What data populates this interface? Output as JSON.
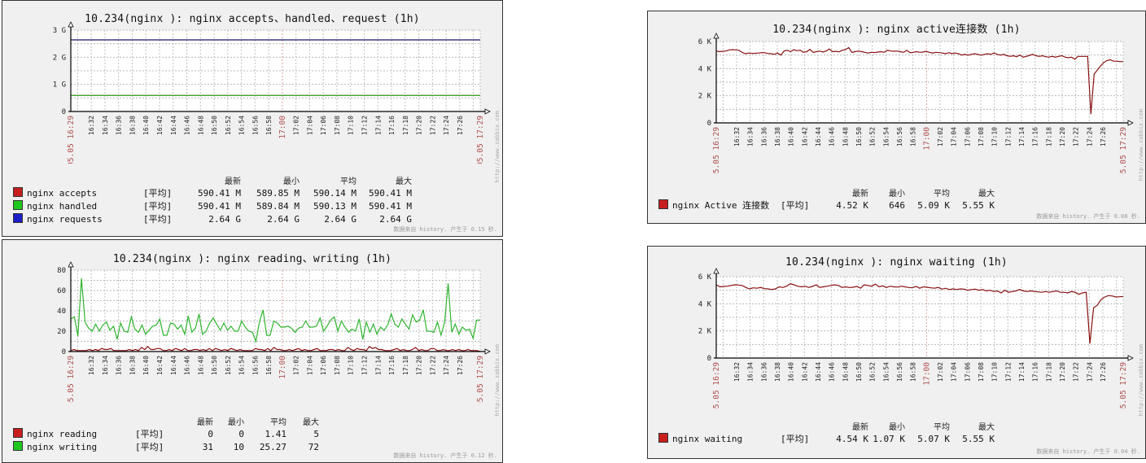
{
  "common": {
    "legend_headers": [
      "最新",
      "最小",
      "平均",
      "最大"
    ],
    "func_label": "[平均]",
    "x_ticks": [
      "16:32",
      "16:34",
      "16:36",
      "16:38",
      "16:40",
      "16:42",
      "16:44",
      "16:46",
      "16:48",
      "16:50",
      "16:52",
      "16:54",
      "16:56",
      "16:58",
      "17:00",
      "17:02",
      "17:04",
      "17:06",
      "17:08",
      "17:10",
      "17:12",
      "17:14",
      "17:16",
      "17:18",
      "17:20",
      "17:22",
      "17:24",
      "17:26"
    ],
    "x_start_label": "05.05 16:29",
    "x_end_label": "05.05 17:29",
    "watermark": "http://www.zabbix.com"
  },
  "panels": [
    {
      "id": "accepts",
      "title": "10.234(nginx ): nginx accepts、handled、request (1h)",
      "footer": "数据来自 history. 产生于 0.15 秒.",
      "series": [
        {
          "name": "nginx accepts",
          "color": "#c81e1e",
          "last": "590.41 M",
          "min": "589.85 M",
          "avg": "590.14 M",
          "max": "590.41 M"
        },
        {
          "name": "nginx handled",
          "color": "#1ec81e",
          "last": "590.41 M",
          "min": "589.84 M",
          "avg": "590.13 M",
          "max": "590.41 M"
        },
        {
          "name": "nginx requests",
          "color": "#1e1ec8",
          "last": "2.64 G",
          "min": "2.64 G",
          "avg": "2.64 G",
          "max": "2.64 G"
        }
      ]
    },
    {
      "id": "reading",
      "title": "10.234(nginx ): nginx reading、writing (1h)",
      "footer": "数据来自 history. 产生于 0.12 秒.",
      "series": [
        {
          "name": "nginx reading",
          "color": "#c81e1e",
          "last": "0",
          "min": "0",
          "avg": "1.41",
          "max": "5"
        },
        {
          "name": "nginx writing",
          "color": "#1ec81e",
          "last": "31",
          "min": "10",
          "avg": "25.27",
          "max": "72"
        }
      ]
    },
    {
      "id": "active",
      "title": "10.234(nginx ): nginx active连接数 (1h)",
      "footer": "数据来自 history. 产生于 0.08 秒.",
      "series": [
        {
          "name": "nginx Active 连接数",
          "color": "#c81e1e",
          "last": "4.52 K",
          "min": "646",
          "avg": "5.09 K",
          "max": "5.55 K"
        }
      ]
    },
    {
      "id": "waiting",
      "title": "10.234(nginx ): nginx waiting (1h)",
      "footer": "数据来自 history. 产生于 0.04 秒.",
      "series": [
        {
          "name": "nginx waiting",
          "color": "#c81e1e",
          "last": "4.54 K",
          "min": "1.07 K",
          "avg": "5.07 K",
          "max": "5.55 K"
        }
      ]
    }
  ],
  "chart_data": [
    {
      "type": "line",
      "title": "10.234(nginx ): nginx accepts、handled、request (1h)",
      "xlabel": "",
      "ylabel": "",
      "y_ticks": [
        "0",
        "1 G",
        "2 G",
        "3 G"
      ],
      "ylim": [
        0,
        3000000000
      ],
      "x_range": [
        "05.05 16:29",
        "05.05 17:29"
      ],
      "grid": true,
      "series": [
        {
          "name": "nginx accepts",
          "color": "#c81e1e",
          "values_constant": 590140000
        },
        {
          "name": "nginx handled",
          "color": "#1ec81e",
          "values_constant": 590130000
        },
        {
          "name": "nginx requests",
          "color": "#1e1ec8",
          "values_constant": 2640000000
        }
      ]
    },
    {
      "type": "line",
      "title": "10.234(nginx ): nginx reading、writing (1h)",
      "xlabel": "",
      "ylabel": "",
      "y_ticks": [
        "0",
        "20",
        "40",
        "60",
        "80"
      ],
      "ylim": [
        0,
        80
      ],
      "x_range": [
        "05.05 16:29",
        "05.05 17:29"
      ],
      "grid": true,
      "series": [
        {
          "name": "nginx reading",
          "color": "#c81e1e",
          "values": [
            1,
            2,
            1,
            1,
            1,
            1,
            2,
            1,
            2,
            1,
            3,
            2,
            2,
            3,
            1,
            1,
            1,
            1,
            1,
            2,
            1,
            2,
            1,
            4,
            2,
            5,
            2,
            2,
            3,
            3,
            1,
            1,
            2,
            1,
            3,
            2,
            1,
            3,
            1,
            1,
            2,
            2,
            1,
            2,
            1,
            3,
            1,
            3,
            2,
            1,
            2,
            1,
            3,
            2,
            1,
            2,
            1,
            1,
            1,
            1,
            3,
            2,
            2,
            1,
            3,
            1,
            4,
            2,
            2,
            1,
            1,
            2,
            1,
            2,
            3,
            1,
            2,
            1,
            1,
            2,
            3,
            1,
            1,
            1,
            2,
            2,
            1,
            2,
            1,
            1,
            4,
            2,
            1,
            3,
            2,
            2,
            1,
            5,
            3,
            4,
            2,
            2,
            1,
            1,
            1,
            2,
            3,
            1,
            2,
            1,
            1,
            2,
            4,
            1,
            2,
            1,
            1,
            3,
            3,
            1,
            1,
            2,
            1,
            1,
            2,
            1,
            2,
            1,
            1,
            2,
            1,
            1,
            1,
            0
          ]
        },
        {
          "name": "nginx writing",
          "color": "#1ec81e",
          "values": [
            32,
            34,
            15,
            72,
            29,
            23,
            20,
            27,
            20,
            26,
            29,
            21,
            25,
            12,
            28,
            20,
            19,
            34,
            22,
            19,
            26,
            17,
            21,
            25,
            26,
            32,
            16,
            16,
            28,
            27,
            22,
            26,
            17,
            35,
            19,
            23,
            37,
            17,
            20,
            28,
            33,
            27,
            21,
            28,
            21,
            25,
            20,
            20,
            30,
            24,
            20,
            19,
            10,
            29,
            41,
            16,
            16,
            30,
            28,
            24,
            24,
            25,
            23,
            19,
            23,
            24,
            30,
            24,
            24,
            25,
            33,
            20,
            25,
            31,
            34,
            20,
            30,
            24,
            19,
            22,
            20,
            32,
            12,
            29,
            19,
            27,
            17,
            24,
            21,
            26,
            37,
            27,
            24,
            32,
            27,
            22,
            36,
            29,
            31,
            41,
            20,
            20,
            19,
            29,
            16,
            29,
            67,
            19,
            27,
            17,
            24,
            21,
            22,
            13,
            31,
            31
          ]
        }
      ]
    },
    {
      "type": "line",
      "title": "10.234(nginx ): nginx active连接数 (1h)",
      "xlabel": "",
      "ylabel": "",
      "y_ticks": [
        "0",
        "2 K",
        "4 K",
        "6 K"
      ],
      "ylim": [
        0,
        6000
      ],
      "x_range": [
        "05.05 16:29",
        "05.05 17:29"
      ],
      "grid": true,
      "series": [
        {
          "name": "nginx Active 连接数",
          "color": "#c81e1e",
          "values": [
            5300,
            5250,
            5280,
            5300,
            5380,
            5400,
            5380,
            5350,
            5200,
            5100,
            5150,
            5120,
            5130,
            5150,
            5180,
            5170,
            5120,
            5100,
            5050,
            5150,
            5000,
            5300,
            5350,
            5250,
            5400,
            5320,
            5350,
            5200,
            5250,
            5420,
            5200,
            5250,
            5300,
            5220,
            5300,
            5450,
            5250,
            5280,
            5230,
            5350,
            5400,
            5550,
            5200,
            5250,
            5300,
            5250,
            5200,
            5150,
            5200,
            5180,
            5220,
            5250,
            5200,
            5350,
            5300,
            5280,
            5300,
            5250,
            5200,
            5350,
            5180,
            5200,
            5250,
            5200,
            5220,
            5280,
            5200,
            5150,
            5200,
            5180,
            5150,
            5100,
            5180,
            5100,
            5150,
            5100,
            5000,
            5050,
            5000,
            5050,
            5100,
            5050,
            5000,
            5050,
            5100,
            5050,
            5150,
            5050,
            5000,
            5050,
            4950,
            4900,
            4950,
            4880,
            5000,
            4850,
            4900,
            4980,
            5050,
            4950,
            4900,
            4950,
            4880,
            4850,
            4900,
            4850,
            4900,
            4950,
            4850,
            4800,
            4850,
            4700,
            4900,
            4900,
            4900,
            4900,
            646,
            3600,
            3900,
            4200,
            4450,
            4600,
            4650,
            4550,
            4550,
            4520,
            4520
          ]
        }
      ]
    },
    {
      "type": "line",
      "title": "10.234(nginx ): nginx waiting (1h)",
      "xlabel": "",
      "ylabel": "",
      "y_ticks": [
        "0",
        "2 K",
        "4 K",
        "6 K"
      ],
      "ylim": [
        0,
        6000
      ],
      "x_range": [
        "05.05 16:29",
        "05.05 17:29"
      ],
      "grid": true,
      "series": [
        {
          "name": "nginx waiting",
          "color": "#c81e1e",
          "values": [
            5400,
            5250,
            5280,
            5300,
            5350,
            5400,
            5380,
            5350,
            5200,
            5100,
            5180,
            5150,
            5200,
            5120,
            5100,
            5050,
            5100,
            5250,
            5200,
            5300,
            5480,
            5400,
            5300,
            5250,
            5300,
            5200,
            5280,
            5400,
            5200,
            5250,
            5300,
            5350,
            5400,
            5350,
            5200,
            5250,
            5200,
            5220,
            5280,
            5150,
            5400,
            5350,
            5300,
            5450,
            5250,
            5320,
            5200,
            5300,
            5250,
            5230,
            5300,
            5250,
            5200,
            5180,
            5280,
            5150,
            5250,
            5220,
            5180,
            5150,
            5200,
            5080,
            5150,
            5050,
            5100,
            5050,
            5100,
            5080,
            5000,
            5050,
            5080,
            5000,
            5050,
            4950,
            5000,
            4900,
            4950,
            4800,
            5000,
            4850,
            4900,
            4950,
            5050,
            4950,
            4900,
            4950,
            4900,
            4880,
            4850,
            4900,
            4850,
            4900,
            4950,
            4850,
            4850,
            4800,
            4900,
            4850,
            4700,
            4800,
            4850,
            1070,
            3700,
            3900,
            4300,
            4500,
            4600,
            4580,
            4500,
            4520,
            4540
          ]
        }
      ]
    }
  ]
}
